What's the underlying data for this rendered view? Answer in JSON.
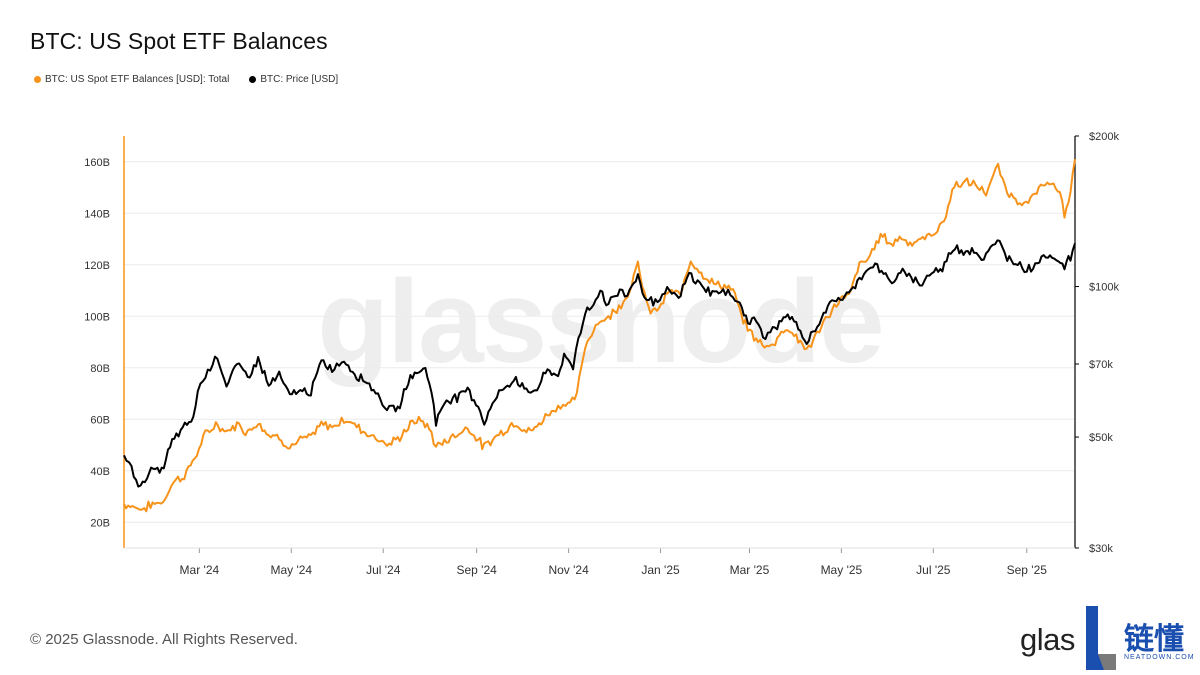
{
  "header": {
    "title": "BTC: US Spot ETF Balances"
  },
  "legend": [
    {
      "label": "BTC: US Spot ETF Balances [USD]: Total",
      "color": "#F7931A"
    },
    {
      "label": "BTC: Price [USD]",
      "color": "#000000"
    }
  ],
  "watermark": "glassnode",
  "footer": {
    "copyright": "© 2025 Glassnode. All Rights Reserved."
  },
  "brand": {
    "text": "glas",
    "cn": "链懂",
    "sub": "NEATDOWN.COM"
  },
  "chart_data": {
    "type": "line",
    "title": "BTC: US Spot ETF Balances",
    "x_range": [
      "2024-01-11",
      "2025-10-03"
    ],
    "x_ticks": [
      {
        "date": "2024-03-01",
        "label": "Mar '24"
      },
      {
        "date": "2024-05-01",
        "label": "May '24"
      },
      {
        "date": "2024-07-01",
        "label": "Jul '24"
      },
      {
        "date": "2024-09-01",
        "label": "Sep '24"
      },
      {
        "date": "2024-11-01",
        "label": "Nov '24"
      },
      {
        "date": "2025-01-01",
        "label": "Jan '25"
      },
      {
        "date": "2025-03-01",
        "label": "Mar '25"
      },
      {
        "date": "2025-05-01",
        "label": "May '25"
      },
      {
        "date": "2025-07-01",
        "label": "Jul '25"
      },
      {
        "date": "2025-09-01",
        "label": "Sep '25"
      }
    ],
    "y_left": {
      "scale": "linear",
      "range": [
        10,
        170
      ],
      "unit": "B",
      "ticks": [
        {
          "value": 20,
          "label": "20B"
        },
        {
          "value": 40,
          "label": "40B"
        },
        {
          "value": 60,
          "label": "60B"
        },
        {
          "value": 80,
          "label": "80B"
        },
        {
          "value": 100,
          "label": "100B"
        },
        {
          "value": 120,
          "label": "120B"
        },
        {
          "value": 140,
          "label": "140B"
        },
        {
          "value": 160,
          "label": "160B"
        }
      ]
    },
    "y_right": {
      "scale": "log",
      "range": [
        30000,
        200000
      ],
      "ticks": [
        {
          "value": 30000,
          "label": "$30k"
        },
        {
          "value": 50000,
          "label": "$50k"
        },
        {
          "value": 70000,
          "label": "$70k"
        },
        {
          "value": 100000,
          "label": "$100k"
        },
        {
          "value": 200000,
          "label": "$200k"
        }
      ]
    },
    "grid": true,
    "series": [
      {
        "name": "BTC: US Spot ETF Balances [USD]: Total",
        "axis": "left",
        "color": "#F7931A",
        "points": [
          [
            "2024-01-11",
            27
          ],
          [
            "2024-01-18",
            26
          ],
          [
            "2024-01-23",
            25
          ],
          [
            "2024-01-30",
            27
          ],
          [
            "2024-02-06",
            28
          ],
          [
            "2024-02-13",
            36
          ],
          [
            "2024-02-20",
            38
          ],
          [
            "2024-02-27",
            45
          ],
          [
            "2024-03-05",
            54
          ],
          [
            "2024-03-12",
            58
          ],
          [
            "2024-03-19",
            55
          ],
          [
            "2024-03-26",
            58
          ],
          [
            "2024-04-02",
            55
          ],
          [
            "2024-04-09",
            59
          ],
          [
            "2024-04-16",
            54
          ],
          [
            "2024-04-23",
            53
          ],
          [
            "2024-04-30",
            49
          ],
          [
            "2024-05-07",
            52
          ],
          [
            "2024-05-14",
            53
          ],
          [
            "2024-05-21",
            58
          ],
          [
            "2024-05-28",
            57
          ],
          [
            "2024-06-05",
            60
          ],
          [
            "2024-06-12",
            58
          ],
          [
            "2024-06-19",
            55
          ],
          [
            "2024-06-26",
            53
          ],
          [
            "2024-07-05",
            50
          ],
          [
            "2024-07-12",
            53
          ],
          [
            "2024-07-19",
            58
          ],
          [
            "2024-07-26",
            60
          ],
          [
            "2024-08-02",
            55
          ],
          [
            "2024-08-05",
            49
          ],
          [
            "2024-08-12",
            52
          ],
          [
            "2024-08-19",
            54
          ],
          [
            "2024-08-26",
            57
          ],
          [
            "2024-09-02",
            52
          ],
          [
            "2024-09-06",
            49
          ],
          [
            "2024-09-13",
            53
          ],
          [
            "2024-09-20",
            56
          ],
          [
            "2024-09-27",
            59
          ],
          [
            "2024-10-04",
            55
          ],
          [
            "2024-10-11",
            57
          ],
          [
            "2024-10-18",
            62
          ],
          [
            "2024-10-25",
            65
          ],
          [
            "2024-10-30",
            66
          ],
          [
            "2024-11-05",
            67
          ],
          [
            "2024-11-08",
            75
          ],
          [
            "2024-11-12",
            88
          ],
          [
            "2024-11-19",
            97
          ],
          [
            "2024-11-26",
            99
          ],
          [
            "2024-12-03",
            103
          ],
          [
            "2024-12-10",
            108
          ],
          [
            "2024-12-17",
            120
          ],
          [
            "2024-12-24",
            102
          ],
          [
            "2024-12-31",
            103
          ],
          [
            "2025-01-07",
            110
          ],
          [
            "2025-01-14",
            108
          ],
          [
            "2025-01-21",
            122
          ],
          [
            "2025-01-28",
            117
          ],
          [
            "2025-02-04",
            113
          ],
          [
            "2025-02-11",
            112
          ],
          [
            "2025-02-18",
            110
          ],
          [
            "2025-02-25",
            98
          ],
          [
            "2025-03-04",
            92
          ],
          [
            "2025-03-11",
            88
          ],
          [
            "2025-03-18",
            90
          ],
          [
            "2025-03-25",
            96
          ],
          [
            "2025-04-01",
            92
          ],
          [
            "2025-04-08",
            87
          ],
          [
            "2025-04-15",
            93
          ],
          [
            "2025-04-22",
            100
          ],
          [
            "2025-04-29",
            106
          ],
          [
            "2025-05-06",
            108
          ],
          [
            "2025-05-13",
            120
          ],
          [
            "2025-05-20",
            123
          ],
          [
            "2025-05-27",
            132
          ],
          [
            "2025-06-03",
            128
          ],
          [
            "2025-06-10",
            131
          ],
          [
            "2025-06-17",
            128
          ],
          [
            "2025-06-24",
            130
          ],
          [
            "2025-07-01",
            132
          ],
          [
            "2025-07-08",
            137
          ],
          [
            "2025-07-15",
            151
          ],
          [
            "2025-07-22",
            152
          ],
          [
            "2025-07-29",
            151
          ],
          [
            "2025-08-05",
            148
          ],
          [
            "2025-08-13",
            158
          ],
          [
            "2025-08-19",
            148
          ],
          [
            "2025-08-26",
            145
          ],
          [
            "2025-09-02",
            144
          ],
          [
            "2025-09-09",
            149
          ],
          [
            "2025-09-16",
            153
          ],
          [
            "2025-09-23",
            147
          ],
          [
            "2025-09-26",
            139
          ],
          [
            "2025-09-30",
            148
          ],
          [
            "2025-10-03",
            161
          ]
        ]
      },
      {
        "name": "BTC: Price [USD]",
        "axis": "right",
        "color": "#000000",
        "points": [
          [
            "2024-01-11",
            46500
          ],
          [
            "2024-01-16",
            43000
          ],
          [
            "2024-01-22",
            39800
          ],
          [
            "2024-01-29",
            43000
          ],
          [
            "2024-02-05",
            42700
          ],
          [
            "2024-02-12",
            49000
          ],
          [
            "2024-02-19",
            52000
          ],
          [
            "2024-02-26",
            54500
          ],
          [
            "2024-02-29",
            62000
          ],
          [
            "2024-03-05",
            66500
          ],
          [
            "2024-03-13",
            73000
          ],
          [
            "2024-03-19",
            63000
          ],
          [
            "2024-03-26",
            70000
          ],
          [
            "2024-04-02",
            66000
          ],
          [
            "2024-04-09",
            71500
          ],
          [
            "2024-04-16",
            63500
          ],
          [
            "2024-04-23",
            66500
          ],
          [
            "2024-04-30",
            60500
          ],
          [
            "2024-05-07",
            62000
          ],
          [
            "2024-05-14",
            61500
          ],
          [
            "2024-05-21",
            70500
          ],
          [
            "2024-05-28",
            68500
          ],
          [
            "2024-06-05",
            71000
          ],
          [
            "2024-06-12",
            67000
          ],
          [
            "2024-06-19",
            65000
          ],
          [
            "2024-06-26",
            61500
          ],
          [
            "2024-07-05",
            56500
          ],
          [
            "2024-07-12",
            57500
          ],
          [
            "2024-07-19",
            66500
          ],
          [
            "2024-07-29",
            68500
          ],
          [
            "2024-08-02",
            62000
          ],
          [
            "2024-08-05",
            53500
          ],
          [
            "2024-08-12",
            59500
          ],
          [
            "2024-08-19",
            60000
          ],
          [
            "2024-08-26",
            62500
          ],
          [
            "2024-09-02",
            57500
          ],
          [
            "2024-09-06",
            53500
          ],
          [
            "2024-09-13",
            59500
          ],
          [
            "2024-09-20",
            63000
          ],
          [
            "2024-09-27",
            65500
          ],
          [
            "2024-10-04",
            61500
          ],
          [
            "2024-10-11",
            62500
          ],
          [
            "2024-10-18",
            68000
          ],
          [
            "2024-10-25",
            66500
          ],
          [
            "2024-10-29",
            72500
          ],
          [
            "2024-11-04",
            68500
          ],
          [
            "2024-11-06",
            75500
          ],
          [
            "2024-11-12",
            88500
          ],
          [
            "2024-11-19",
            93500
          ],
          [
            "2024-11-22",
            99000
          ],
          [
            "2024-11-26",
            92000
          ],
          [
            "2024-12-05",
            98000
          ],
          [
            "2024-12-10",
            96500
          ],
          [
            "2024-12-17",
            106000
          ],
          [
            "2024-12-20",
            96500
          ],
          [
            "2024-12-30",
            92500
          ],
          [
            "2025-01-07",
            99000
          ],
          [
            "2025-01-13",
            94000
          ],
          [
            "2025-01-20",
            106000
          ],
          [
            "2025-01-27",
            101000
          ],
          [
            "2025-02-03",
            97500
          ],
          [
            "2025-02-10",
            97500
          ],
          [
            "2025-02-18",
            96000
          ],
          [
            "2025-02-24",
            91500
          ],
          [
            "2025-02-28",
            84000
          ],
          [
            "2025-03-04",
            87000
          ],
          [
            "2025-03-10",
            79500
          ],
          [
            "2025-03-18",
            82500
          ],
          [
            "2025-03-25",
            87500
          ],
          [
            "2025-04-01",
            84000
          ],
          [
            "2025-04-08",
            76500
          ],
          [
            "2025-04-15",
            84000
          ],
          [
            "2025-04-22",
            91000
          ],
          [
            "2025-04-29",
            94500
          ],
          [
            "2025-05-06",
            96500
          ],
          [
            "2025-05-13",
            104000
          ],
          [
            "2025-05-22",
            111000
          ],
          [
            "2025-05-29",
            106000
          ],
          [
            "2025-06-05",
            101500
          ],
          [
            "2025-06-12",
            108000
          ],
          [
            "2025-06-22",
            101000
          ],
          [
            "2025-06-30",
            107000
          ],
          [
            "2025-07-07",
            108000
          ],
          [
            "2025-07-14",
            120000
          ],
          [
            "2025-07-21",
            118000
          ],
          [
            "2025-07-28",
            118500
          ],
          [
            "2025-08-02",
            113000
          ],
          [
            "2025-08-14",
            123500
          ],
          [
            "2025-08-19",
            114000
          ],
          [
            "2025-08-26",
            111500
          ],
          [
            "2025-09-01",
            108000
          ],
          [
            "2025-09-08",
            112000
          ],
          [
            "2025-09-15",
            116000
          ],
          [
            "2025-09-22",
            113000
          ],
          [
            "2025-09-26",
            109500
          ],
          [
            "2025-09-30",
            114500
          ],
          [
            "2025-10-03",
            122000
          ]
        ]
      }
    ]
  }
}
